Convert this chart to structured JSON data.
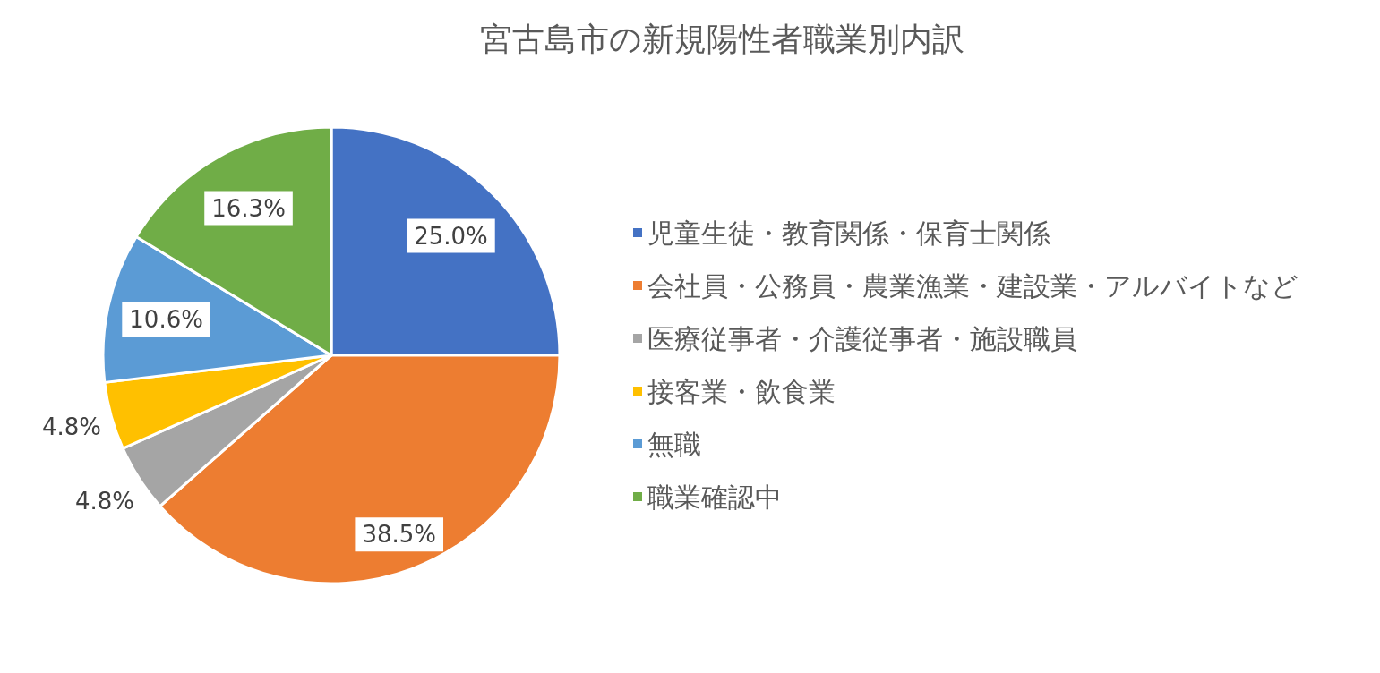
{
  "chart_data": {
    "type": "pie",
    "title": "宮古島市の新規陽性者職業別内訳",
    "categories": [
      "児童生徒・教育関係・保育士関係",
      "会社員・公務員・農業漁業・建設業・アルバイトなど",
      "医療従事者・介護従事者・施設職員",
      "接客業・飲食業",
      "無職",
      "職業確認中"
    ],
    "values": [
      25.0,
      38.5,
      4.8,
      4.8,
      10.6,
      16.3
    ],
    "colors": [
      "#4472c4",
      "#ed7d31",
      "#a5a5a5",
      "#ffc000",
      "#5b9bd5",
      "#70ad47"
    ],
    "value_labels": [
      "25.0%",
      "38.5%",
      "4.8%",
      "4.8%",
      "10.6%",
      "16.3%"
    ],
    "legend": "right"
  }
}
